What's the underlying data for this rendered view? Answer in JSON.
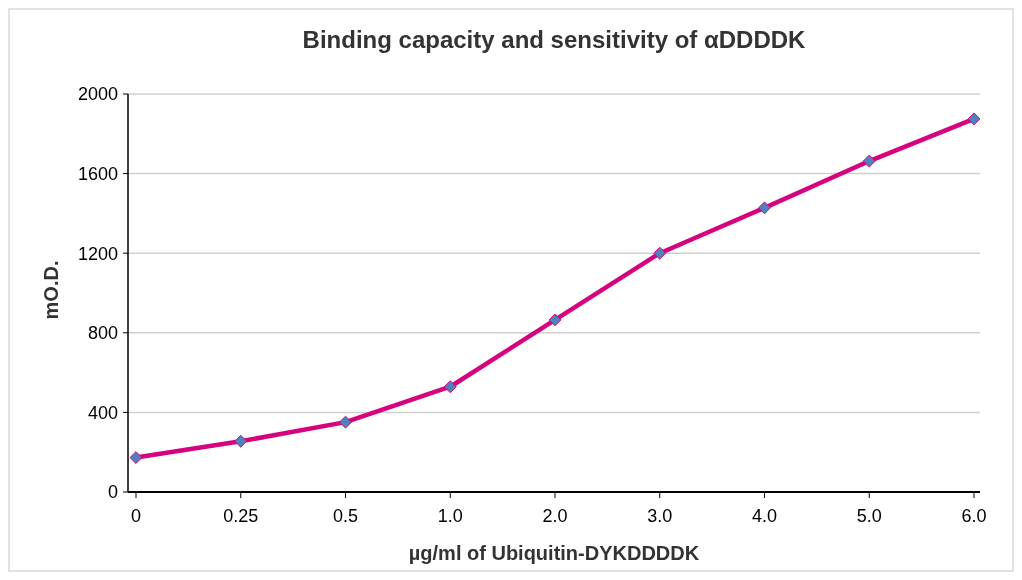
{
  "chart_data": {
    "type": "line",
    "title": "Binding capacity and sensitivity of αDDDDK",
    "xlabel": "µg/ml of Ubiquitin-DYKDDDDK",
    "ylabel": "mO.D.",
    "categories": [
      "0",
      "0.25",
      "0.5",
      "1.0",
      "2.0",
      "3.0",
      "4.0",
      "5.0",
      "6.0"
    ],
    "series": [
      {
        "color": "#d6037e",
        "values": [
          173,
          255,
          351,
          529,
          865,
          1200,
          1428,
          1663,
          1875
        ]
      }
    ],
    "ylim": [
      0,
      2000
    ],
    "yticks": [
      0,
      400,
      800,
      1200,
      1600,
      2000
    ],
    "grid": "y",
    "marker": "diamond",
    "line_style": "solid"
  }
}
